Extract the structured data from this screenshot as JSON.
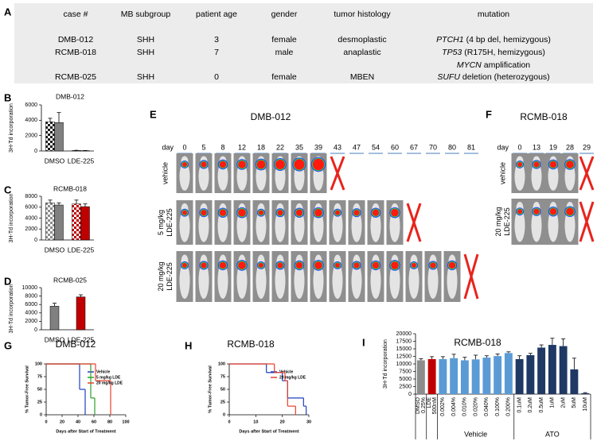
{
  "table": {
    "panel": "A",
    "header": [
      "case #",
      "MB subgroup",
      "patient age",
      "gender",
      "tumor histology",
      "mutation"
    ],
    "rows": [
      [
        "DMB-012",
        "SHH",
        3,
        "female",
        "desmoplastic",
        [
          {
            "gene": "PTCH1",
            "detail": "(4 bp del, hemizygous)"
          }
        ]
      ],
      [
        "RCMB-018",
        "SHH",
        7,
        "male",
        "anaplastic",
        [
          {
            "gene": "TP53",
            "detail": "(R175H, hemizygous)"
          },
          {
            "gene": "MYCN",
            "detail": "amplification"
          }
        ]
      ],
      [
        "RCMB-025",
        "SHH",
        0,
        "female",
        "MBEN",
        [
          {
            "gene": "SUFU",
            "detail": "deletion (heterozygous)"
          }
        ]
      ]
    ]
  },
  "imaging": [
    {
      "panel": "E",
      "title": "DMB-012",
      "day_label": "day",
      "days": [
        0,
        5,
        8,
        12,
        18,
        22,
        35,
        39,
        43,
        47,
        54,
        60,
        67,
        70,
        80,
        81
      ],
      "rows": [
        {
          "label": [
            "vehicle"
          ],
          "endpoint": 43
        },
        {
          "label": [
            "5 mg/kg",
            "LDE-225"
          ],
          "endpoint": 67
        },
        {
          "label": [
            "20 mg/kg",
            "LDE-225"
          ],
          "endpoint": 81
        }
      ]
    },
    {
      "panel": "F",
      "title": "RCMB-018",
      "day_label": "day",
      "days": [
        0,
        13,
        19,
        28,
        29
      ],
      "rows": [
        {
          "label": [
            "vehicle"
          ],
          "endpoint": 29
        },
        {
          "label": [
            "20 mg/kg",
            "LDE-225"
          ],
          "endpoint": 29
        }
      ]
    }
  ],
  "chart_data": [
    {
      "type": "bar",
      "panel": "B",
      "title": "DMB-012",
      "ylabel": "3H-Td incorporation",
      "categories": [
        "DMSO",
        "LDE-225"
      ],
      "series": [
        {
          "pattern": "checker",
          "colors": [
            "#1a1a1a",
            "#1a1a1a"
          ],
          "values": [
            3800,
            60
          ],
          "errors": [
            450,
            30
          ]
        },
        {
          "colors": [
            "#808080",
            "#808080"
          ],
          "values": [
            3700,
            40
          ],
          "errors": [
            1300,
            20
          ]
        }
      ],
      "ylim": [
        0,
        6000
      ],
      "yticks": [
        0,
        2000,
        4000,
        6000
      ]
    },
    {
      "type": "bar",
      "panel": "C",
      "title": "RCMB-018",
      "ylabel": "3H-Td incorporation",
      "categories": [
        "DMSO",
        "LDE-225"
      ],
      "series": [
        {
          "pattern": "checker",
          "colors": [
            "#8c8c8c",
            "#c00000"
          ],
          "values": [
            6800,
            6600
          ],
          "errors": [
            500,
            700
          ]
        },
        {
          "colors": [
            "#808080",
            "#c00000"
          ],
          "values": [
            6400,
            6100
          ],
          "errors": [
            400,
            500
          ]
        }
      ],
      "ylim": [
        0,
        8000
      ],
      "yticks": [
        0,
        2000,
        4000,
        6000,
        8000
      ]
    },
    {
      "type": "bar",
      "panel": "D",
      "title": "RCMB-025",
      "ylabel": "3H-Td incorporation",
      "categories": [
        "DMSO",
        "LDE-225"
      ],
      "series": [
        {
          "colors": [
            "#808080",
            "#c00000"
          ],
          "values": [
            5600,
            7800
          ],
          "errors": [
            700,
            500
          ]
        }
      ],
      "ylim": [
        0,
        10000
      ],
      "yticks": [
        0,
        2000,
        4000,
        6000,
        8000,
        10000
      ]
    },
    {
      "type": "line",
      "step": true,
      "panel": "G",
      "title": "DMB-012",
      "ylabel": "% Tumor-Free Survival",
      "xlabel": "Days after Start of Treatment",
      "legend": "upper right",
      "xlim": [
        0,
        100
      ],
      "xticks": [
        0,
        20,
        40,
        60,
        80,
        100
      ],
      "ylim": [
        0,
        100
      ],
      "yticks": [
        0,
        25,
        50,
        75,
        100
      ],
      "series": [
        {
          "name": "Vehicle",
          "color": "#1f3fbf",
          "x": [
            0,
            42,
            49
          ],
          "values": [
            100,
            50,
            0
          ]
        },
        {
          "name": "5 mg/kg LDE",
          "color": "#2ca02c",
          "x": [
            0,
            56,
            61
          ],
          "values": [
            100,
            33,
            0
          ]
        },
        {
          "name": "20 mg/kg LDE",
          "color": "#e8402a",
          "x": [
            0,
            62,
            81
          ],
          "values": [
            100,
            67,
            0
          ]
        }
      ]
    },
    {
      "type": "line",
      "step": true,
      "panel": "H",
      "title": "RCMB-018",
      "ylabel": "% Tumor-Free Survival",
      "xlabel": "Days after Start of Treatment",
      "legend": "upper right",
      "xlim": [
        0,
        30
      ],
      "xticks": [
        0,
        10,
        20,
        30
      ],
      "ylim": [
        0,
        100
      ],
      "yticks": [
        0,
        25,
        50,
        75,
        100
      ],
      "series": [
        {
          "name": "Vehicle",
          "color": "#1f3fbf",
          "x": [
            0,
            14,
            20,
            22,
            28,
            29
          ],
          "values": [
            100,
            83,
            67,
            33,
            17,
            0
          ]
        },
        {
          "name": "20 mg/kg LDE",
          "color": "#e8402a",
          "x": [
            0,
            17,
            21,
            22,
            25
          ],
          "values": [
            100,
            83,
            67,
            17,
            0
          ]
        }
      ]
    },
    {
      "type": "bar",
      "panel": "I",
      "title": "RCMB-018",
      "ylabel": "3H-Td incorporation",
      "ylim": [
        0,
        20000
      ],
      "yticks": [
        0,
        2500,
        5000,
        7500,
        10000,
        12500,
        15000,
        17500,
        20000
      ],
      "groups": [
        {
          "label": "DMSO",
          "color": "#8c8c8c",
          "categories": [
            "0.25%"
          ],
          "values": [
            11200
          ],
          "errors": [
            500
          ]
        },
        {
          "label": "LDE",
          "color": "#c00000",
          "categories": [
            "500nM"
          ],
          "values": [
            11600
          ],
          "errors": [
            800
          ]
        },
        {
          "label": "Vehicle",
          "color": "#5b9bd5",
          "categories": [
            "0.002%",
            "0.004%",
            "0.010%",
            "0.020%",
            "0.040%",
            "0.100%",
            "0.200%"
          ],
          "values": [
            11600,
            11900,
            11200,
            11500,
            12100,
            12600,
            13600
          ],
          "errors": [
            800,
            1300,
            1000,
            1400,
            600,
            700,
            400
          ]
        },
        {
          "label": "ATO",
          "color": "#1f3864",
          "categories": [
            "0.1uM",
            "0.2uM",
            "0.5uM",
            "1uM",
            "2uM",
            "5uM",
            "10uM"
          ],
          "values": [
            11600,
            12900,
            15400,
            16300,
            15900,
            8200,
            300
          ],
          "errors": [
            1100,
            600,
            900,
            2200,
            2400,
            3700,
            200
          ]
        }
      ]
    }
  ]
}
